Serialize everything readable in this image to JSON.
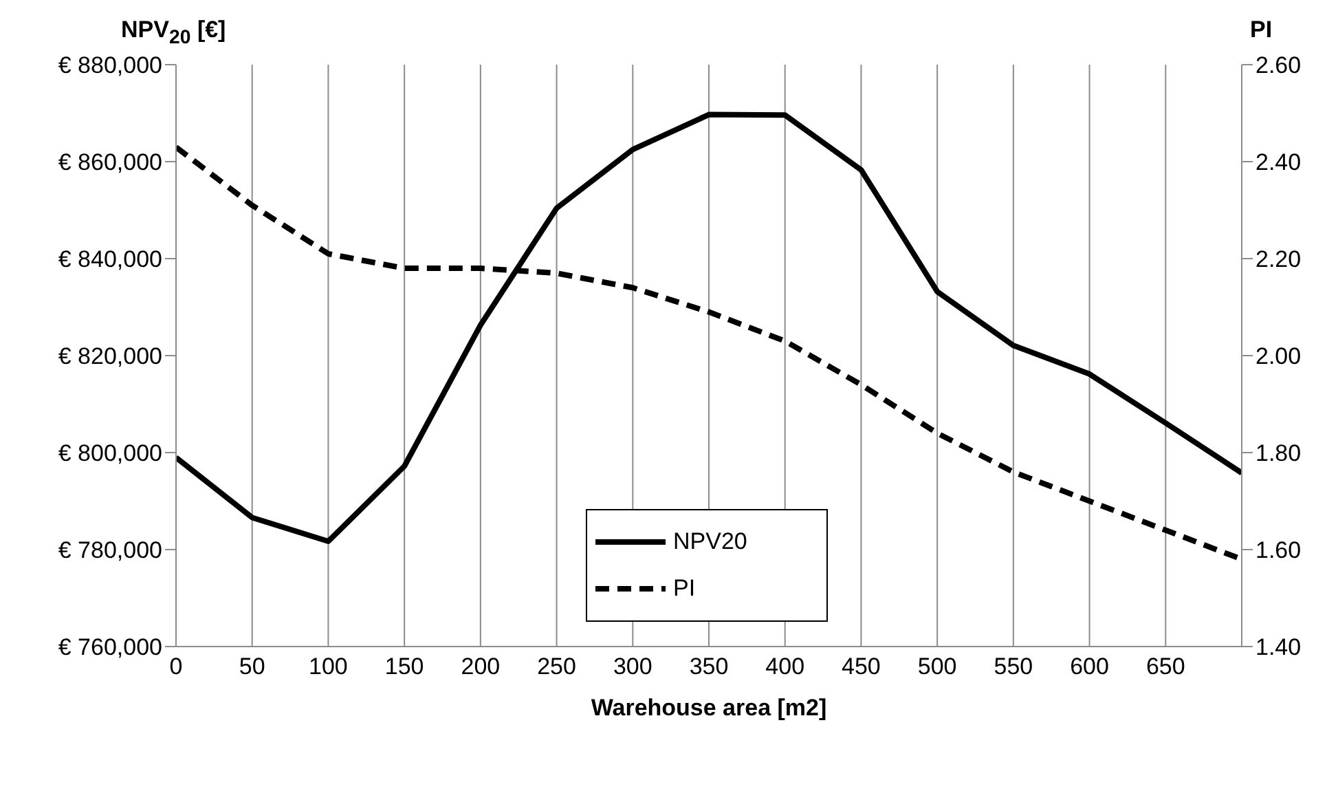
{
  "chart_data": {
    "type": "line",
    "xlabel": "Warehouse area [m2]",
    "ylabel": "NPV$_{20}$ [€]",
    "y2label": "PI",
    "x": [
      0,
      50,
      100,
      150,
      200,
      250,
      300,
      350,
      400,
      450,
      500,
      550,
      600,
      650,
      700
    ],
    "xlim": [
      0,
      700
    ],
    "xticks": [
      0,
      50,
      100,
      150,
      200,
      250,
      300,
      350,
      400,
      450,
      500,
      550,
      600,
      650
    ],
    "ylim": [
      760000,
      880000
    ],
    "yticks": [
      {
        "value": 760000,
        "label": "€ 760,000"
      },
      {
        "value": 780000,
        "label": "€ 780,000"
      },
      {
        "value": 800000,
        "label": "€ 800,000"
      },
      {
        "value": 820000,
        "label": "€ 820,000"
      },
      {
        "value": 840000,
        "label": "€ 840,000"
      },
      {
        "value": 860000,
        "label": "€ 860,000"
      },
      {
        "value": 880000,
        "label": "€ 880,000"
      }
    ],
    "y2lim": [
      1.4,
      2.6
    ],
    "y2ticks": [
      {
        "value": 1.4,
        "label": "1.40"
      },
      {
        "value": 1.6,
        "label": "1.60"
      },
      {
        "value": 1.8,
        "label": "1.80"
      },
      {
        "value": 2.0,
        "label": "2.00"
      },
      {
        "value": 2.2,
        "label": "2.20"
      },
      {
        "value": 2.4,
        "label": "2.40"
      },
      {
        "value": 2.6,
        "label": "2.60"
      }
    ],
    "grid": "x",
    "legend": "bottom",
    "marker": "none",
    "series": [
      {
        "name": "NPV20",
        "color": "#000000",
        "line_style": "solid",
        "values": [
          799000,
          786600,
          781700,
          797200,
          826300,
          850400,
          862500,
          869700,
          869600,
          858300,
          833200,
          822100,
          816200,
          806100,
          795800
        ]
      },
      {
        "name": "PI",
        "color": "#000000",
        "line_style": "dashed",
        "axis": "y2",
        "values": [
          2.43,
          2.31,
          2.21,
          2.18,
          2.18,
          2.17,
          2.14,
          2.09,
          2.03,
          1.94,
          1.84,
          1.76,
          1.7,
          1.64,
          1.58
        ]
      }
    ]
  }
}
